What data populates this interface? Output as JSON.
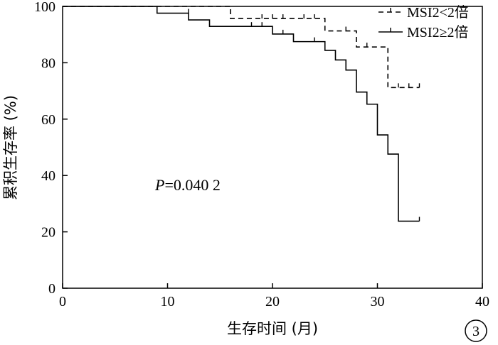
{
  "chart_data": {
    "type": "line",
    "subtype": "kaplan-meier-step",
    "xlabel": "生存时间 (月)",
    "ylabel": "累积生存率 (%)",
    "xlim": [
      0,
      40
    ],
    "ylim": [
      0,
      100
    ],
    "xticks": [
      0,
      10,
      20,
      30,
      40
    ],
    "yticks": [
      0,
      20,
      40,
      60,
      80,
      100
    ],
    "x_tick_labels": [
      "0",
      "10",
      "20",
      "30",
      "40"
    ],
    "y_tick_labels": [
      "0",
      "20",
      "40",
      "60",
      "80",
      "100"
    ],
    "grid": false,
    "legend_position": "top-right",
    "annotation": {
      "italic": "P",
      "rest": "=0.040 2"
    },
    "panel_label": "3",
    "series": [
      {
        "name": "MSI2<2倍",
        "style": "dashed",
        "steps": [
          [
            0,
            100
          ],
          [
            16,
            95.7
          ],
          [
            25,
            91.3
          ],
          [
            28,
            85.6
          ],
          [
            31,
            71.2
          ],
          [
            34,
            71.2
          ]
        ],
        "censored": [
          [
            19,
            95.7
          ],
          [
            20,
            95.7
          ],
          [
            21,
            95.7
          ],
          [
            23,
            95.7
          ],
          [
            24,
            95.7
          ],
          [
            27,
            91.3
          ],
          [
            29,
            85.6
          ],
          [
            32,
            71.2
          ],
          [
            33,
            71.2
          ],
          [
            34,
            71.2
          ]
        ]
      },
      {
        "name": "MSI2≥2倍",
        "style": "solid",
        "steps": [
          [
            0,
            100
          ],
          [
            9,
            97.6
          ],
          [
            12,
            95.2
          ],
          [
            14,
            92.9
          ],
          [
            20,
            90.2
          ],
          [
            22,
            87.5
          ],
          [
            25,
            84.4
          ],
          [
            26,
            81.0
          ],
          [
            27,
            77.4
          ],
          [
            28,
            69.6
          ],
          [
            29,
            65.3
          ],
          [
            30,
            54.4
          ],
          [
            31,
            47.6
          ],
          [
            32,
            23.8
          ],
          [
            34,
            23.8
          ]
        ],
        "censored": [
          [
            12,
            97.6
          ],
          [
            18,
            92.9
          ],
          [
            19,
            92.9
          ],
          [
            21,
            90.2
          ],
          [
            24,
            87.5
          ],
          [
            34,
            23.8
          ]
        ]
      }
    ]
  }
}
